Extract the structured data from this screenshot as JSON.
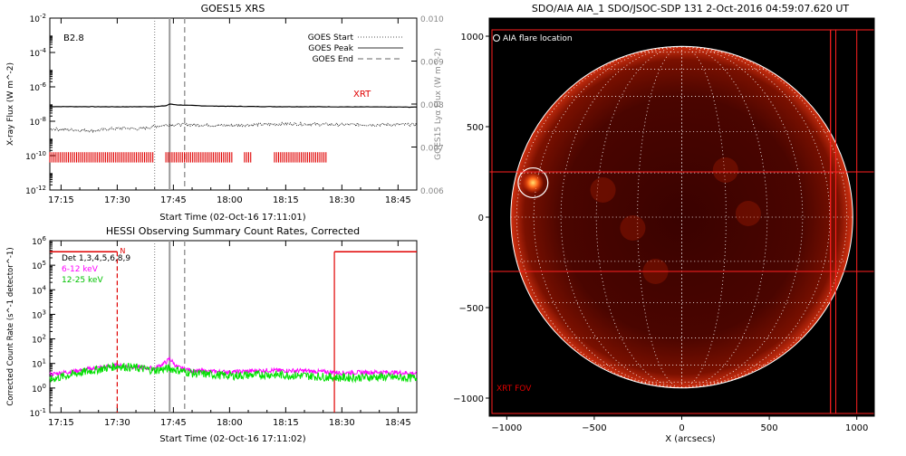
{
  "chart_data": [
    {
      "type": "line",
      "title": "GOES15 XRS",
      "xlabel": "Start Time (02-Oct-16 17:11:01)",
      "ylabel": "X-ray Flux (W m^-2)",
      "ylabel_right": "GOES15 Lyα Flux (W m^-2)",
      "x_ticks": [
        "17:15",
        "17:30",
        "17:45",
        "18:00",
        "18:15",
        "18:30",
        "18:45"
      ],
      "x_range_min": [
        12,
        110
      ],
      "y_log_range": [
        -12,
        -2
      ],
      "y_ticks_exp": [
        -12,
        -10,
        -8,
        -6,
        -4,
        -2
      ],
      "y2_ticks": [
        "0.006",
        "0.007",
        "0.008",
        "0.009",
        "0.010"
      ],
      "y2_range": [
        0.006,
        0.01
      ],
      "class_label": "B2.8",
      "xrt_label": "XRT",
      "legend": [
        {
          "name": "GOES Start",
          "style": "dotted"
        },
        {
          "name": "GOES Peak",
          "style": "solid"
        },
        {
          "name": "GOES End",
          "style": "dashed"
        }
      ],
      "event_lines_min": {
        "start": 40,
        "peak": 44,
        "end": 48
      },
      "series": [
        {
          "name": "long",
          "x": [
            12,
            20,
            30,
            40,
            43,
            44,
            46,
            55,
            70,
            85,
            100,
            110
          ],
          "log_flux": [
            -7.15,
            -7.15,
            -7.16,
            -7.15,
            -7.1,
            -7.0,
            -7.05,
            -7.12,
            -7.15,
            -7.16,
            -7.17,
            -7.18
          ]
        },
        {
          "name": "short",
          "x": [
            12,
            18,
            24,
            28,
            32,
            36,
            40,
            44,
            48,
            60,
            75,
            90,
            110
          ],
          "log_flux": [
            -8.45,
            -8.5,
            -8.55,
            -8.45,
            -8.4,
            -8.45,
            -8.3,
            -8.2,
            -8.2,
            -8.25,
            -8.15,
            -8.2,
            -8.2
          ]
        }
      ],
      "xrt_segments_min": [
        [
          12,
          40
        ],
        [
          43,
          61
        ],
        [
          64,
          66
        ],
        [
          72,
          86
        ]
      ]
    },
    {
      "type": "line",
      "title": "HESSI Observing Summary Count Rates, Corrected",
      "xlabel": "Start Time (02-Oct-16 17:11:02)",
      "ylabel": "Corrected Count Rate (s^-1 detector^-1)",
      "x_ticks": [
        "17:15",
        "17:30",
        "17:45",
        "18:00",
        "18:15",
        "18:30",
        "18:45"
      ],
      "x_range_min": [
        12,
        110
      ],
      "y_log_range": [
        -1,
        6
      ],
      "y_ticks_exp": [
        -1,
        0,
        1,
        2,
        3,
        4,
        5,
        6
      ],
      "legend_det": "Det 1,3,4,5,6,8,9",
      "marker_n": "N",
      "event_lines_min": {
        "start": 40,
        "peak": 44,
        "end": 48
      },
      "night_dash_min": 30,
      "night_solid_min": 88,
      "series": [
        {
          "name": "6-12 keV",
          "color": "#ff00ff",
          "x": [
            12,
            20,
            30,
            35,
            40,
            43,
            44,
            46,
            50,
            60,
            70,
            80,
            90,
            100,
            110
          ],
          "log_rate": [
            0.55,
            0.72,
            0.92,
            0.85,
            0.8,
            1.05,
            1.2,
            0.85,
            0.7,
            0.65,
            0.72,
            0.7,
            0.62,
            0.65,
            0.6
          ]
        },
        {
          "name": "12-25 keV",
          "color": "#00e000",
          "x": [
            12,
            20,
            30,
            35,
            40,
            44,
            50,
            60,
            70,
            80,
            90,
            100,
            110
          ],
          "log_rate": [
            0.35,
            0.62,
            0.9,
            0.82,
            0.72,
            0.8,
            0.6,
            0.5,
            0.55,
            0.5,
            0.42,
            0.45,
            0.4
          ]
        }
      ]
    },
    {
      "type": "heatmap",
      "title": "SDO/AIA AIA_1 SDO/JSOC-SDP 131  2-Oct-2016 04:59:07.620 UT",
      "xlabel": "X (arcsecs)",
      "x_ticks": [
        -1000,
        -500,
        0,
        500,
        1000
      ],
      "y_ticks": [
        -1000,
        -500,
        0,
        500,
        1000
      ],
      "range_arcsec": [
        -1100,
        1100
      ],
      "solar_radius_arcsec": 960,
      "legend_label": "AIA flare location",
      "fov_label": "XRT FOV",
      "flare_location_arcsec": [
        -850,
        190
      ],
      "flare_circle_radius_arcsec": 85,
      "fov_band_y_arcsec": [
        -300,
        250
      ],
      "fov_right_x_arcsec": [
        850,
        880,
        1000
      ]
    }
  ]
}
